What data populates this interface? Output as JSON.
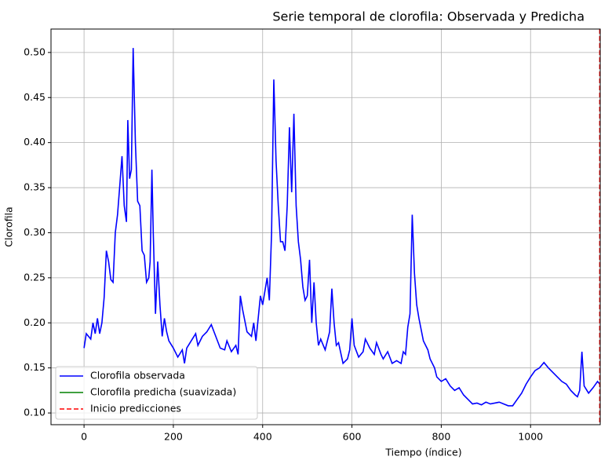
{
  "chart_data": {
    "type": "line",
    "title": "Serie temporal de clorofila: Observada y Predicha",
    "x_label": "Tiempo (índice)",
    "y_label": "Clorofila",
    "xlim": [
      -74,
      1156
    ],
    "ylim": [
      0.087,
      0.526
    ],
    "xticks": [
      0,
      200,
      400,
      600,
      800,
      1000
    ],
    "yticks": [
      {
        "value": 0.1,
        "label": "0.10"
      },
      {
        "value": 0.15,
        "label": "0.15"
      },
      {
        "value": 0.2,
        "label": "0.20"
      },
      {
        "value": 0.25,
        "label": "0.25"
      },
      {
        "value": 0.3,
        "label": "0.30"
      },
      {
        "value": 0.35,
        "label": "0.35"
      },
      {
        "value": 0.4,
        "label": "0.40"
      },
      {
        "value": 0.45,
        "label": "0.45"
      },
      {
        "value": 0.5,
        "label": "0.50"
      }
    ],
    "grid": true,
    "legend": "lower left",
    "series": [
      {
        "name": "Clorofila observada",
        "color": "#0000ff",
        "x": [
          0,
          5,
          15,
          20,
          25,
          30,
          35,
          40,
          45,
          50,
          55,
          60,
          65,
          70,
          75,
          80,
          85,
          90,
          95,
          98,
          102,
          106,
          110,
          115,
          120,
          125,
          130,
          135,
          140,
          145,
          148,
          152,
          155,
          160,
          165,
          170,
          175,
          180,
          185,
          190,
          200,
          210,
          220,
          225,
          230,
          240,
          250,
          255,
          265,
          275,
          285,
          295,
          305,
          315,
          320,
          330,
          340,
          345,
          350,
          355,
          365,
          375,
          380,
          385,
          395,
          400,
          405,
          410,
          415,
          420,
          425,
          430,
          435,
          440,
          445,
          450,
          455,
          460,
          465,
          470,
          475,
          480,
          485,
          490,
          495,
          500,
          505,
          510,
          515,
          520,
          525,
          530,
          540,
          550,
          555,
          560,
          565,
          570,
          580,
          590,
          595,
          600,
          605,
          615,
          625,
          630,
          640,
          650,
          655,
          665,
          670,
          680,
          690,
          700,
          710,
          715,
          720,
          725,
          730,
          735,
          740,
          745,
          750,
          760,
          770,
          775,
          785,
          790,
          800,
          810,
          820,
          830,
          840,
          850,
          860,
          870,
          880,
          890,
          900,
          910,
          920,
          930,
          940,
          950,
          960,
          970,
          980,
          990,
          1000,
          1010,
          1020,
          1030,
          1040,
          1050,
          1060,
          1070,
          1080,
          1090,
          1100,
          1105,
          1110,
          1115,
          1120,
          1130,
          1140,
          1150,
          1155
        ],
        "values": [
          0.172,
          0.188,
          0.182,
          0.2,
          0.188,
          0.205,
          0.188,
          0.2,
          0.228,
          0.28,
          0.268,
          0.248,
          0.245,
          0.3,
          0.32,
          0.352,
          0.385,
          0.33,
          0.312,
          0.425,
          0.36,
          0.37,
          0.505,
          0.4,
          0.335,
          0.33,
          0.28,
          0.275,
          0.245,
          0.25,
          0.268,
          0.37,
          0.3,
          0.21,
          0.268,
          0.22,
          0.185,
          0.205,
          0.19,
          0.18,
          0.172,
          0.162,
          0.17,
          0.155,
          0.172,
          0.18,
          0.188,
          0.175,
          0.185,
          0.19,
          0.198,
          0.185,
          0.172,
          0.17,
          0.18,
          0.168,
          0.175,
          0.165,
          0.23,
          0.215,
          0.19,
          0.185,
          0.2,
          0.18,
          0.23,
          0.22,
          0.235,
          0.25,
          0.225,
          0.3,
          0.47,
          0.38,
          0.33,
          0.29,
          0.29,
          0.28,
          0.33,
          0.417,
          0.345,
          0.432,
          0.33,
          0.29,
          0.27,
          0.24,
          0.225,
          0.23,
          0.27,
          0.2,
          0.245,
          0.2,
          0.175,
          0.182,
          0.17,
          0.19,
          0.238,
          0.2,
          0.175,
          0.178,
          0.155,
          0.16,
          0.17,
          0.205,
          0.175,
          0.162,
          0.168,
          0.182,
          0.172,
          0.165,
          0.178,
          0.165,
          0.16,
          0.168,
          0.155,
          0.158,
          0.155,
          0.168,
          0.165,
          0.195,
          0.21,
          0.32,
          0.255,
          0.22,
          0.205,
          0.18,
          0.17,
          0.16,
          0.15,
          0.14,
          0.135,
          0.138,
          0.13,
          0.125,
          0.128,
          0.12,
          0.115,
          0.11,
          0.111,
          0.109,
          0.112,
          0.11,
          0.111,
          0.112,
          0.11,
          0.108,
          0.108,
          0.115,
          0.122,
          0.132,
          0.14,
          0.147,
          0.15,
          0.156,
          0.15,
          0.145,
          0.14,
          0.135,
          0.132,
          0.125,
          0.12,
          0.118,
          0.125,
          0.168,
          0.13,
          0.122,
          0.128,
          0.135,
          0.132
        ]
      },
      {
        "name": "Clorofila predicha (suavizada)",
        "color": "#008000",
        "x": [],
        "values": []
      }
    ],
    "vlines": [
      {
        "name": "Inicio predicciones",
        "color": "#ff0000",
        "x": 1155
      }
    ]
  }
}
